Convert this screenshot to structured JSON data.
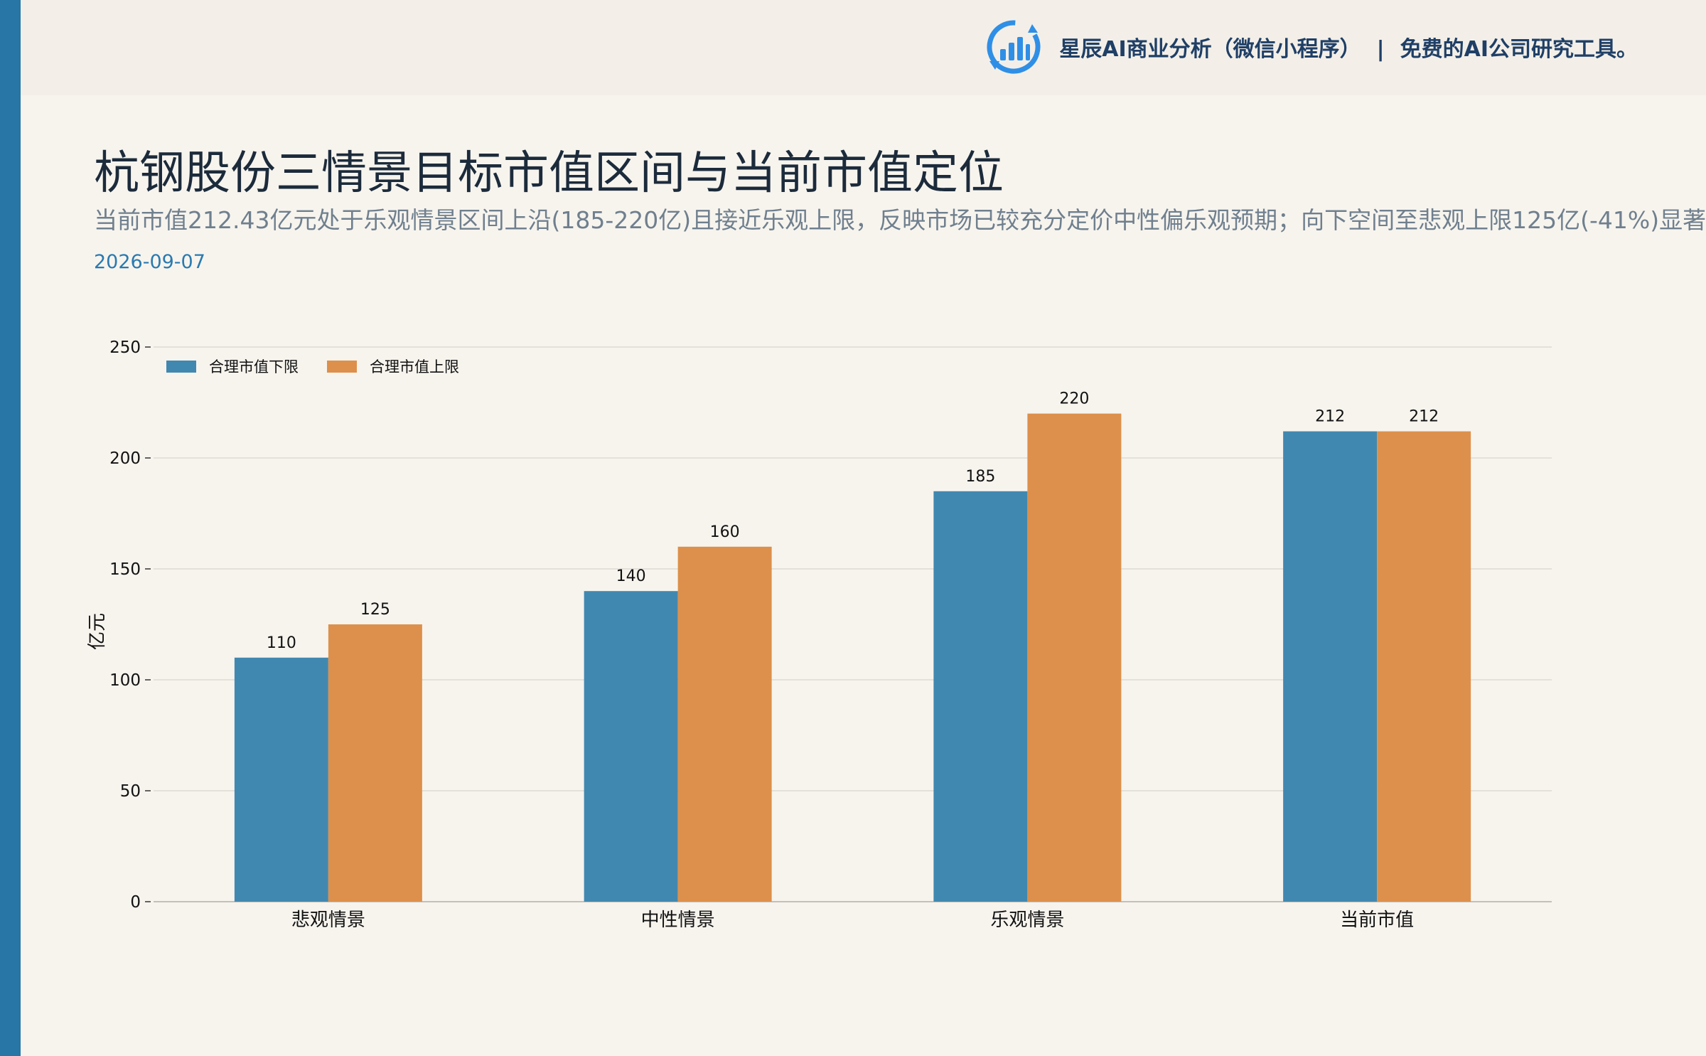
{
  "header": {
    "brand_name": "星辰AI商业分析（微信小程序）",
    "separator": "|",
    "brand_tagline": "免费的AI公司研究工具。",
    "logo_icon": "bar-chart-refresh-icon"
  },
  "title": "杭钢股份三情景目标市值区间与当前市值定位",
  "subtitle": "当前市值212.43亿元处于乐观情景区间上沿(185-220亿)且接近乐观上限，反映市场已较充分定价中性偏乐观预期；向下空间至悲观上限125亿(-41%)显著大",
  "date": "2026-09-07",
  "colors": {
    "accent_bar": "#2776a5",
    "series_lower": "#4188b0",
    "series_upper": "#dd904b",
    "background": "#f7f4ee"
  },
  "chart_data": {
    "type": "bar",
    "categories": [
      "悲观情景",
      "中性情景",
      "乐观情景",
      "当前市值"
    ],
    "series": [
      {
        "name": "合理市值下限",
        "values": [
          110,
          140,
          185,
          212
        ]
      },
      {
        "name": "合理市值上限",
        "values": [
          125,
          160,
          220,
          212
        ]
      }
    ],
    "ylabel": "亿元",
    "ylim": [
      0,
      250
    ],
    "yticks": [
      0,
      50,
      100,
      150,
      200,
      250
    ],
    "grid": true,
    "legend": "top-left"
  }
}
